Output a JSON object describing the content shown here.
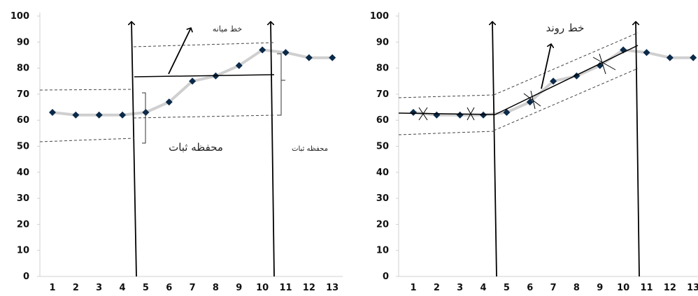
{
  "chart_data": [
    {
      "type": "line",
      "x": [
        1,
        2,
        3,
        4,
        5,
        6,
        7,
        8,
        9,
        10,
        11,
        12,
        13
      ],
      "series": [
        {
          "values": [
            63,
            62,
            62,
            62,
            63,
            67,
            75,
            77,
            81,
            87,
            86,
            84,
            84
          ]
        }
      ],
      "ylim": [
        0,
        100
      ],
      "yticks": [
        "0",
        "10",
        "20",
        "30",
        "40",
        "50",
        "60",
        "70",
        "80",
        "90",
        "100"
      ],
      "xticks": [
        "1",
        "2",
        "3",
        "4",
        "5",
        "6",
        "7",
        "8",
        "9",
        "10",
        "11",
        "12",
        "13"
      ],
      "grid": false,
      "annotations": {
        "stability_envelope": "محفظه ثبات",
        "median_line": "خط میانه",
        "stability_envelope_small": "محفظه ثبات"
      },
      "colors": {
        "line": "#cfcfcf",
        "marker": "#0b2a4a",
        "ink": "#000000"
      }
    },
    {
      "type": "line",
      "x": [
        1,
        2,
        3,
        4,
        5,
        6,
        7,
        8,
        9,
        10,
        11,
        12,
        13
      ],
      "series": [
        {
          "values": [
            63,
            62,
            62,
            62,
            63,
            67,
            75,
            77,
            81,
            87,
            86,
            84,
            84
          ]
        }
      ],
      "ylim": [
        0,
        100
      ],
      "yticks": [
        "0",
        "10",
        "20",
        "30",
        "40",
        "50",
        "60",
        "70",
        "80",
        "90",
        "100"
      ],
      "xticks": [
        "1",
        "2",
        "3",
        "4",
        "5",
        "6",
        "7",
        "8",
        "9",
        "10",
        "11",
        "12",
        "13"
      ],
      "grid": false,
      "annotations": {
        "trend_line": "خط روند"
      },
      "colors": {
        "line": "#cfcfcf",
        "marker": "#0b2a4a",
        "ink": "#000000"
      }
    }
  ]
}
